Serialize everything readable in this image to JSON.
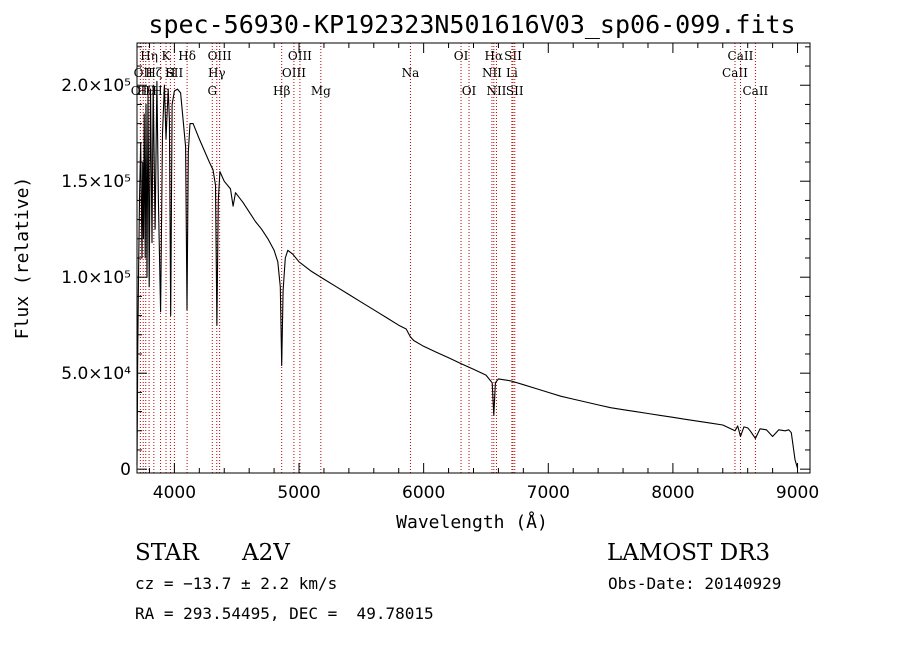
{
  "chart_data": {
    "type": "line",
    "title": "spec-56930-KP192323N501616V03_sp06-099.fits",
    "xlabel": "Wavelength (Å)",
    "ylabel": "Flux (relative)",
    "xlim": [
      3700,
      9100
    ],
    "ylim": [
      -2000,
      222000
    ],
    "x_ticks": [
      {
        "value": 4000,
        "label": "4000"
      },
      {
        "value": 5000,
        "label": "5000"
      },
      {
        "value": 6000,
        "label": "6000"
      },
      {
        "value": 7000,
        "label": "7000"
      },
      {
        "value": 8000,
        "label": "8000"
      },
      {
        "value": 9000,
        "label": "9000"
      }
    ],
    "y_ticks": [
      {
        "value": 0,
        "label": "0"
      },
      {
        "value": 50000,
        "label": "5.0×10⁴"
      },
      {
        "value": 100000,
        "label": "1.0×10⁵"
      },
      {
        "value": 150000,
        "label": "1.5×10⁵"
      },
      {
        "value": 200000,
        "label": "2.0×10⁵"
      }
    ],
    "series": [
      {
        "name": "flux",
        "points": [
          [
            3700,
            2000
          ],
          [
            3703,
            30000
          ],
          [
            3706,
            60000
          ],
          [
            3712,
            100000
          ],
          [
            3720,
            140000
          ],
          [
            3730,
            170000
          ],
          [
            3740,
            110000
          ],
          [
            3746,
            160000
          ],
          [
            3752,
            120000
          ],
          [
            3758,
            185000
          ],
          [
            3766,
            110000
          ],
          [
            3772,
            190000
          ],
          [
            3780,
            100000
          ],
          [
            3788,
            195000
          ],
          [
            3798,
            95000
          ],
          [
            3808,
            198000
          ],
          [
            3820,
            118000
          ],
          [
            3830,
            200000
          ],
          [
            3845,
            125000
          ],
          [
            3860,
            202000
          ],
          [
            3872,
            140000
          ],
          [
            3889,
            82000
          ],
          [
            3905,
            175000
          ],
          [
            3920,
            200000
          ],
          [
            3933,
            172000
          ],
          [
            3950,
            198000
          ],
          [
            3960,
            182000
          ],
          [
            3970,
            80000
          ],
          [
            3982,
            190000
          ],
          [
            4000,
            197000
          ],
          [
            4025,
            198000
          ],
          [
            4050,
            196000
          ],
          [
            4070,
            182000
          ],
          [
            4090,
            168000
          ],
          [
            4101,
            83000
          ],
          [
            4112,
            165000
          ],
          [
            4125,
            180000
          ],
          [
            4150,
            180000
          ],
          [
            4175,
            176000
          ],
          [
            4200,
            172000
          ],
          [
            4240,
            166000
          ],
          [
            4280,
            160000
          ],
          [
            4310,
            156000
          ],
          [
            4330,
            148000
          ],
          [
            4341,
            75000
          ],
          [
            4352,
            140000
          ],
          [
            4365,
            155000
          ],
          [
            4400,
            150000
          ],
          [
            4450,
            146000
          ],
          [
            4471,
            137000
          ],
          [
            4490,
            144000
          ],
          [
            4550,
            139000
          ],
          [
            4600,
            134000
          ],
          [
            4650,
            129000
          ],
          [
            4700,
            125000
          ],
          [
            4750,
            120000
          ],
          [
            4800,
            114000
          ],
          [
            4830,
            108000
          ],
          [
            4850,
            95000
          ],
          [
            4861,
            54000
          ],
          [
            4872,
            93000
          ],
          [
            4890,
            110000
          ],
          [
            4910,
            114000
          ],
          [
            4950,
            112000
          ],
          [
            5000,
            108000
          ],
          [
            5100,
            103000
          ],
          [
            5200,
            99000
          ],
          [
            5300,
            95000
          ],
          [
            5400,
            91000
          ],
          [
            5500,
            87000
          ],
          [
            5600,
            83000
          ],
          [
            5700,
            79000
          ],
          [
            5800,
            75000
          ],
          [
            5860,
            73000
          ],
          [
            5893,
            69000
          ],
          [
            5920,
            67000
          ],
          [
            6000,
            64000
          ],
          [
            6100,
            61000
          ],
          [
            6200,
            58000
          ],
          [
            6300,
            55000
          ],
          [
            6400,
            52000
          ],
          [
            6500,
            49000
          ],
          [
            6550,
            45000
          ],
          [
            6563,
            28000
          ],
          [
            6576,
            45000
          ],
          [
            6600,
            47000
          ],
          [
            6700,
            46000
          ],
          [
            6800,
            44000
          ],
          [
            6900,
            42000
          ],
          [
            7000,
            40000
          ],
          [
            7100,
            38000
          ],
          [
            7200,
            36500
          ],
          [
            7300,
            35000
          ],
          [
            7400,
            33500
          ],
          [
            7500,
            32000
          ],
          [
            7600,
            31000
          ],
          [
            7700,
            30000
          ],
          [
            7800,
            29000
          ],
          [
            7900,
            28000
          ],
          [
            8000,
            27000
          ],
          [
            8100,
            26000
          ],
          [
            8200,
            25000
          ],
          [
            8300,
            24000
          ],
          [
            8400,
            23000
          ],
          [
            8498,
            20000
          ],
          [
            8520,
            22500
          ],
          [
            8542,
            17000
          ],
          [
            8570,
            22000
          ],
          [
            8600,
            21500
          ],
          [
            8620,
            20000
          ],
          [
            8662,
            16000
          ],
          [
            8700,
            21000
          ],
          [
            8750,
            20500
          ],
          [
            8800,
            17000
          ],
          [
            8850,
            20500
          ],
          [
            8900,
            20000
          ],
          [
            8930,
            20500
          ],
          [
            8950,
            19000
          ],
          [
            8980,
            5000
          ],
          [
            9000,
            500
          ]
        ]
      }
    ],
    "spectral_lines": [
      {
        "wavelength": 3727,
        "label": "OII",
        "row": 2
      },
      {
        "wavelength": 3750,
        "label": "OII",
        "row": 1
      },
      {
        "wavelength": 3770,
        "label": "Hθ",
        "row": 2
      },
      {
        "wavelength": 3797,
        "label": "Hη",
        "row": 0
      },
      {
        "wavelength": 3835,
        "label": "Hζ",
        "row": 1
      },
      {
        "wavelength": 3889,
        "label": "Hε",
        "row": 2
      },
      {
        "wavelength": 3933,
        "label": "K",
        "row": 0
      },
      {
        "wavelength": 3968,
        "label": "H",
        "row": 1
      },
      {
        "wavelength": 4000,
        "label": "SII",
        "row": 1
      },
      {
        "wavelength": 4102,
        "label": "Hδ",
        "row": 0
      },
      {
        "wavelength": 4304,
        "label": "G",
        "row": 2
      },
      {
        "wavelength": 4340,
        "label": "Hγ",
        "row": 1
      },
      {
        "wavelength": 4363,
        "label": "OIII",
        "row": 0
      },
      {
        "wavelength": 4861,
        "label": "Hβ",
        "row": 2
      },
      {
        "wavelength": 4959,
        "label": "OIII",
        "row": 1
      },
      {
        "wavelength": 5007,
        "label": "OIII",
        "row": 0
      },
      {
        "wavelength": 5175,
        "label": "Mg",
        "row": 2
      },
      {
        "wavelength": 5894,
        "label": "Na",
        "row": 1
      },
      {
        "wavelength": 6300,
        "label": "OI",
        "row": 0
      },
      {
        "wavelength": 6364,
        "label": "OI",
        "row": 2
      },
      {
        "wavelength": 6548,
        "label": "NII",
        "row": 1
      },
      {
        "wavelength": 6563,
        "label": "Hα",
        "row": 0
      },
      {
        "wavelength": 6584,
        "label": "NII",
        "row": 2
      },
      {
        "wavelength": 6708,
        "label": "Li",
        "row": 1
      },
      {
        "wavelength": 6717,
        "label": "SII",
        "row": 0
      },
      {
        "wavelength": 6731,
        "label": "SII",
        "row": 2
      },
      {
        "wavelength": 8498,
        "label": "CaII",
        "row": 1
      },
      {
        "wavelength": 8542,
        "label": "CaII",
        "row": 0
      },
      {
        "wavelength": 8662,
        "label": "CaII",
        "row": 2
      }
    ]
  },
  "info": {
    "object_class": "STAR",
    "subclass": "A2V",
    "survey": "LAMOST DR3",
    "redshift": "cz = −13.7 ± 2.2 km/s",
    "obs_date": "Obs-Date: 20140929",
    "coords": "RA = 293.54495, DEC =  49.78015"
  }
}
